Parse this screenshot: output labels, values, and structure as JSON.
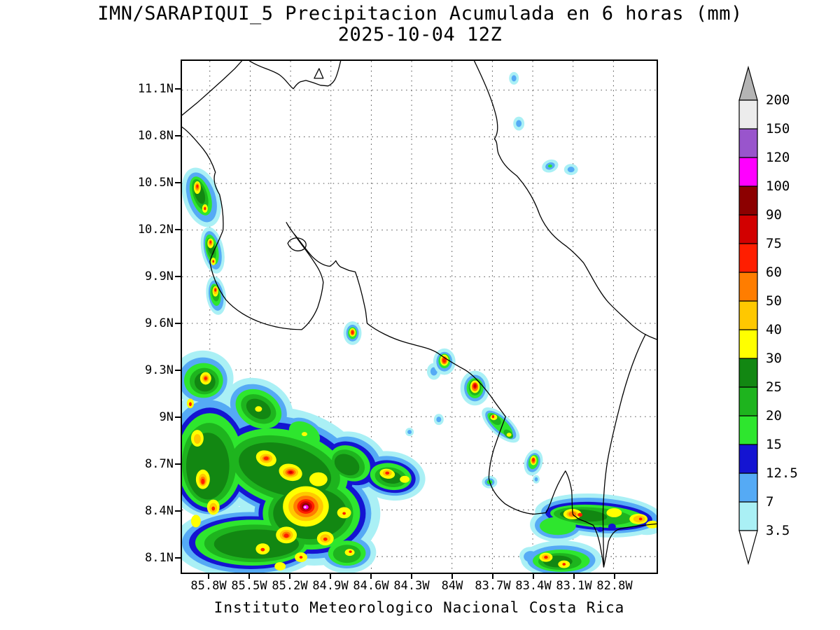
{
  "title": {
    "line1": "IMN/SARAPIQUI_5 Precipitacion Acumulada en 6 horas (mm)",
    "line2": "2025-10-04 12Z"
  },
  "footer": "Instituto Meteorologico Nacional Costa Rica",
  "chart_data": {
    "type": "heatmap",
    "subtype": "filled-contour precipitation map (model output)",
    "title": "IMN/SARAPIQUI_5 Precipitacion Acumulada en 6 horas (mm)",
    "subtitle": "2025-10-04 12Z",
    "units": "mm",
    "region": "Costa Rica",
    "grid": true,
    "legend_position": "right",
    "lon_range": [
      "86.0W",
      "82.5W"
    ],
    "lat_range": [
      "8.0N",
      "11.3N"
    ],
    "lat_ticks": [
      "11.1N",
      "10.8N",
      "10.5N",
      "10.2N",
      "9.9N",
      "9.6N",
      "9.3N",
      "9N",
      "8.7N",
      "8.4N",
      "8.1N"
    ],
    "lon_ticks": [
      "85.8W",
      "85.5W",
      "85.2W",
      "84.9W",
      "84.6W",
      "84.3W",
      "84W",
      "83.7W",
      "83.4W",
      "83.1W",
      "82.8W"
    ],
    "colorbar": {
      "labels": [
        "3.5",
        "7",
        "12.5",
        "15",
        "20",
        "25",
        "30",
        "40",
        "50",
        "60",
        "75",
        "90",
        "100",
        "120",
        "150",
        "200"
      ],
      "segment_colors": [
        "#aaf0f5",
        "#55aaf5",
        "#1414d2",
        "#2ee62e",
        "#1eb41e",
        "#128712",
        "#ffff00",
        "#ffc800",
        "#ff7d00",
        "#ff1e00",
        "#d20000",
        "#8c0000",
        "#ff00ff",
        "#9955cc",
        "#ececec"
      ],
      "above_color": "#b4b4b4",
      "below_color": "#ffffff"
    },
    "max_cells": [
      {
        "lon": "85.1W",
        "lat": "8.4N",
        "peak_mm": "100-120"
      },
      {
        "lon": "83.8W",
        "lat": "9.2N",
        "peak_mm": "75-90"
      },
      {
        "lon": "85.2W",
        "lat": "8.65N",
        "peak_mm": "60-75"
      },
      {
        "lon": "84.05W",
        "lat": "9.35N",
        "peak_mm": "60-75"
      },
      {
        "lon": "84.75W",
        "lat": "9.55N",
        "peak_mm": "60-75"
      },
      {
        "lon": "85.9W",
        "lat": "10.5N",
        "peak_mm": "60-75"
      },
      {
        "lon": "85.8W",
        "lat": "10.1N",
        "peak_mm": "60-75"
      },
      {
        "lon": "85.75W",
        "lat": "9.8N",
        "peak_mm": "60-75"
      },
      {
        "lon": "83.4W",
        "lat": "8.7N",
        "peak_mm": "60-75"
      },
      {
        "lon": "83.05W",
        "lat": "8.37N",
        "peak_mm": "60-75"
      }
    ]
  }
}
